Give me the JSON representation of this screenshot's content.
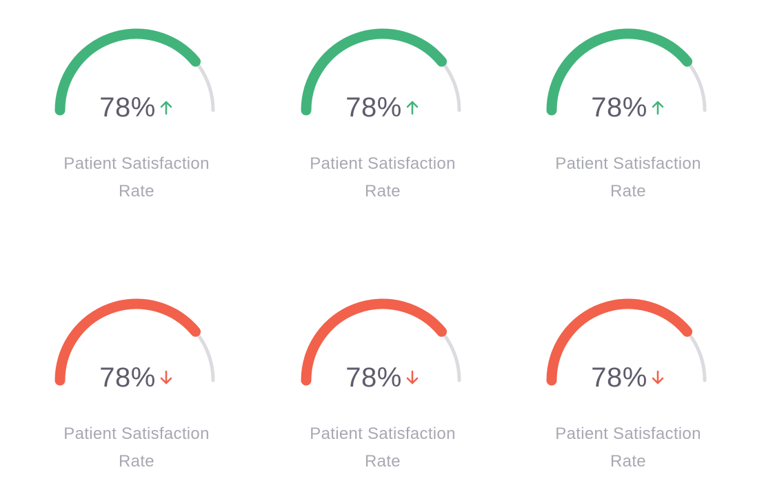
{
  "colors": {
    "up": "#42b47b",
    "down": "#f2614b",
    "track": "#dcdce0",
    "value_text": "#5f5b6c",
    "label_text": "#a8a8b3"
  },
  "gauges": [
    {
      "value_text": "78%",
      "fill_fraction": 0.78,
      "trend": "up",
      "trend_icon": "arrow-up-icon",
      "label_line1": "Patient Satisfaction",
      "label_line2": "Rate"
    },
    {
      "value_text": "78%",
      "fill_fraction": 0.78,
      "trend": "up",
      "trend_icon": "arrow-up-icon",
      "label_line1": "Patient Satisfaction",
      "label_line2": "Rate"
    },
    {
      "value_text": "78%",
      "fill_fraction": 0.78,
      "trend": "up",
      "trend_icon": "arrow-up-icon",
      "label_line1": "Patient Satisfaction",
      "label_line2": "Rate"
    },
    {
      "value_text": "78%",
      "fill_fraction": 0.78,
      "trend": "down",
      "trend_icon": "arrow-down-icon",
      "label_line1": "Patient Satisfaction",
      "label_line2": "Rate"
    },
    {
      "value_text": "78%",
      "fill_fraction": 0.78,
      "trend": "down",
      "trend_icon": "arrow-down-icon",
      "label_line1": "Patient Satisfaction",
      "label_line2": "Rate"
    },
    {
      "value_text": "78%",
      "fill_fraction": 0.78,
      "trend": "down",
      "trend_icon": "arrow-down-icon",
      "label_line1": "Patient Satisfaction",
      "label_line2": "Rate"
    }
  ]
}
